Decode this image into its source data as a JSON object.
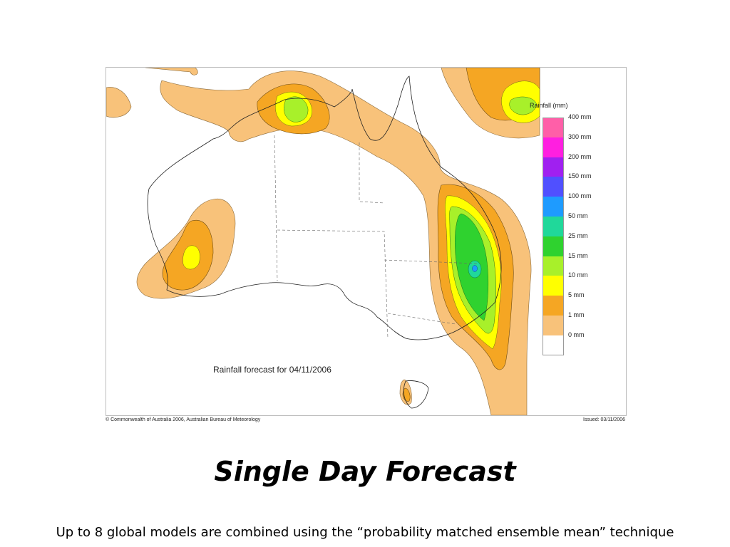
{
  "map": {
    "title": "Rainfall forecast for 04/11/2006",
    "legend_title": "Rainfall (mm)",
    "legend": [
      {
        "label": "400 mm",
        "color": "#ff5fa8"
      },
      {
        "label": "300 mm",
        "color": "#ff1fe0"
      },
      {
        "label": "200 mm",
        "color": "#a020f0"
      },
      {
        "label": "150 mm",
        "color": "#5050ff"
      },
      {
        "label": "100 mm",
        "color": "#1e9bff"
      },
      {
        "label": "50 mm",
        "color": "#20d89a"
      },
      {
        "label": "25 mm",
        "color": "#2fd22f"
      },
      {
        "label": "15 mm",
        "color": "#a8f02a"
      },
      {
        "label": "10 mm",
        "color": "#ffff00"
      },
      {
        "label": "5 mm",
        "color": "#f5a623"
      },
      {
        "label": "1 mm",
        "color": "#f8c27a"
      },
      {
        "label": "0 mm",
        "color": "#ffffff"
      }
    ],
    "credit_left": "© Commonwealth of Australia 2006, Australian Bureau of Meteorology",
    "credit_right": "Issued: 03/11/2006"
  },
  "slide": {
    "title": "Single Day Forecast",
    "subtitle": "Up to 8 global models are combined using the “probability matched ensemble mean” technique"
  }
}
